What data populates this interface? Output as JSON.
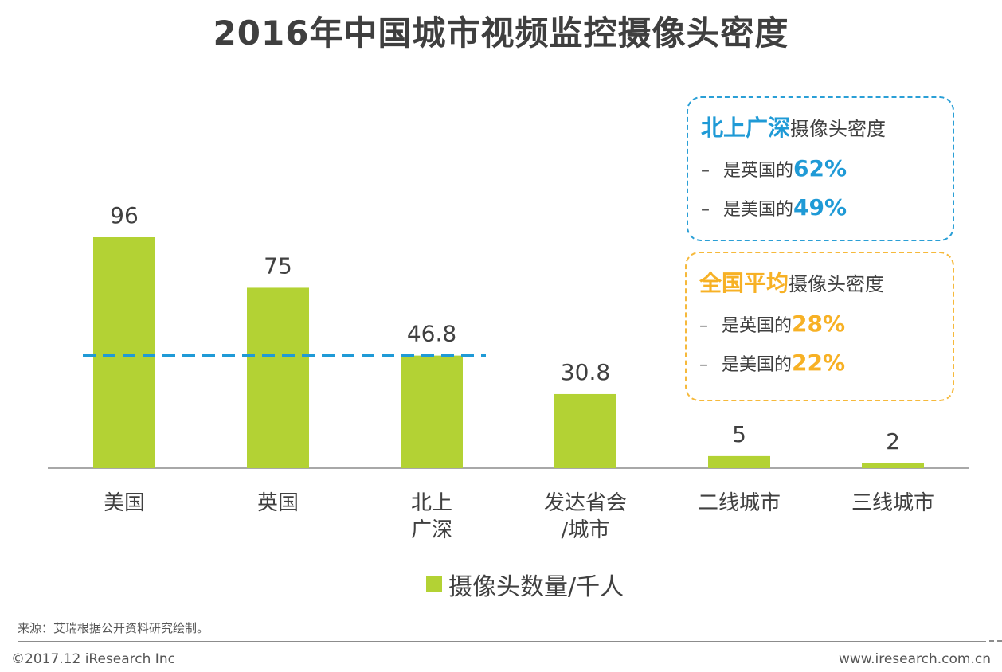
{
  "title": "2016年中国城市视频监控摄像头密度",
  "chart_data": {
    "type": "bar",
    "categories": [
      [
        "美国"
      ],
      [
        "英国"
      ],
      [
        "北上",
        "广深"
      ],
      [
        "发达省会",
        "/城市"
      ],
      [
        "二线城市"
      ],
      [
        "三线城市"
      ]
    ],
    "series": [
      {
        "name": "摄像头数量/千人",
        "values": [
          96,
          75,
          46.8,
          30.8,
          5,
          2
        ]
      }
    ],
    "data_labels": [
      "96",
      "75",
      "46.8",
      "30.8",
      "5",
      "2"
    ],
    "reference_line": {
      "value": 46.8,
      "style": "dashed",
      "color": "#1f9ad6"
    },
    "ylim": [
      0,
      110
    ],
    "bar_color": "#b3d234",
    "legend_position": "bottom"
  },
  "callouts": {
    "beishangguangshen": {
      "highlight": "北上广深",
      "suffix": "摄像头密度",
      "lines": [
        {
          "dash": "–",
          "text": "是英国的",
          "value": "62%"
        },
        {
          "dash": "–",
          "text": "是美国的",
          "value": "49%"
        }
      ],
      "color": "#1f9ad6"
    },
    "national": {
      "highlight": "全国平均",
      "suffix": "摄像头密度",
      "lines": [
        {
          "dash": "–",
          "text": "是英国的",
          "value": "28%"
        },
        {
          "dash": "–",
          "text": "是美国的",
          "value": "22%"
        }
      ],
      "color": "#f7b125"
    }
  },
  "legend_label": "摄像头数量/千人",
  "source": "来源：艾瑞根据公开资料研究绘制。",
  "copyright": "©2017.12 iResearch Inc",
  "website": "www.iresearch.com.cn"
}
